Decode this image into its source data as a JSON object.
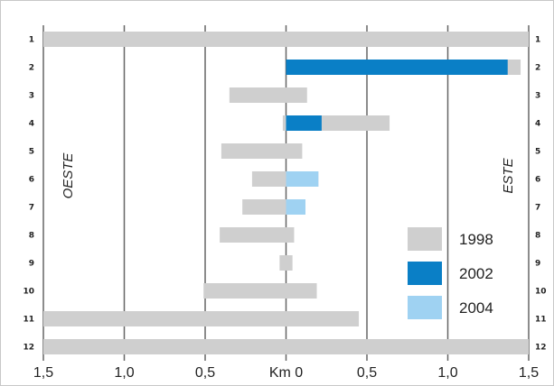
{
  "chart_data": {
    "type": "bar",
    "title": "",
    "xlabel": "",
    "ylabel": "",
    "xlim": [
      -1.5,
      1.5
    ],
    "x_ticks": [
      "1,5",
      "1,0",
      "0,5",
      "Km 0",
      "0,5",
      "1,0",
      "1,5"
    ],
    "x_tick_values": [
      -1.5,
      -1.0,
      -0.5,
      0,
      0.5,
      1.0,
      1.5
    ],
    "row_labels": [
      "1",
      "2",
      "3",
      "4",
      "5",
      "6",
      "7",
      "8",
      "9",
      "10",
      "11",
      "12"
    ],
    "west_label": "OESTE",
    "east_label": "ESTE",
    "legend_position": "lower-right",
    "series": [
      {
        "name": "1998",
        "color": "#cfcfcf",
        "intervals": [
          {
            "row": "1",
            "from": -1.5,
            "to": 1.5
          },
          {
            "row": "2",
            "from": 0.0,
            "to": 1.45
          },
          {
            "row": "3",
            "from": -0.35,
            "to": 0.13
          },
          {
            "row": "4",
            "from": -0.02,
            "to": 0.64
          },
          {
            "row": "5",
            "from": -0.4,
            "to": 0.1
          },
          {
            "row": "6",
            "from": -0.21,
            "to": 0.2
          },
          {
            "row": "7",
            "from": -0.27,
            "to": 0.12
          },
          {
            "row": "8",
            "from": -0.41,
            "to": 0.05
          },
          {
            "row": "9",
            "from": -0.04,
            "to": 0.04
          },
          {
            "row": "10",
            "from": -0.51,
            "to": 0.19
          },
          {
            "row": "11",
            "from": -1.5,
            "to": 0.45
          },
          {
            "row": "12",
            "from": -1.5,
            "to": 1.5
          }
        ]
      },
      {
        "name": "2002",
        "color": "#0a7fc6",
        "intervals": [
          {
            "row": "2",
            "from": 0.0,
            "to": 1.37
          },
          {
            "row": "4",
            "from": 0.0,
            "to": 0.22
          },
          {
            "row": "7",
            "from": 0.0,
            "to": 0.11
          }
        ]
      },
      {
        "name": "2004",
        "color": "#9fd2f2",
        "intervals": [
          {
            "row": "6",
            "from": 0.0,
            "to": 0.2
          },
          {
            "row": "7",
            "from": 0.0,
            "to": 0.12
          }
        ]
      }
    ]
  }
}
